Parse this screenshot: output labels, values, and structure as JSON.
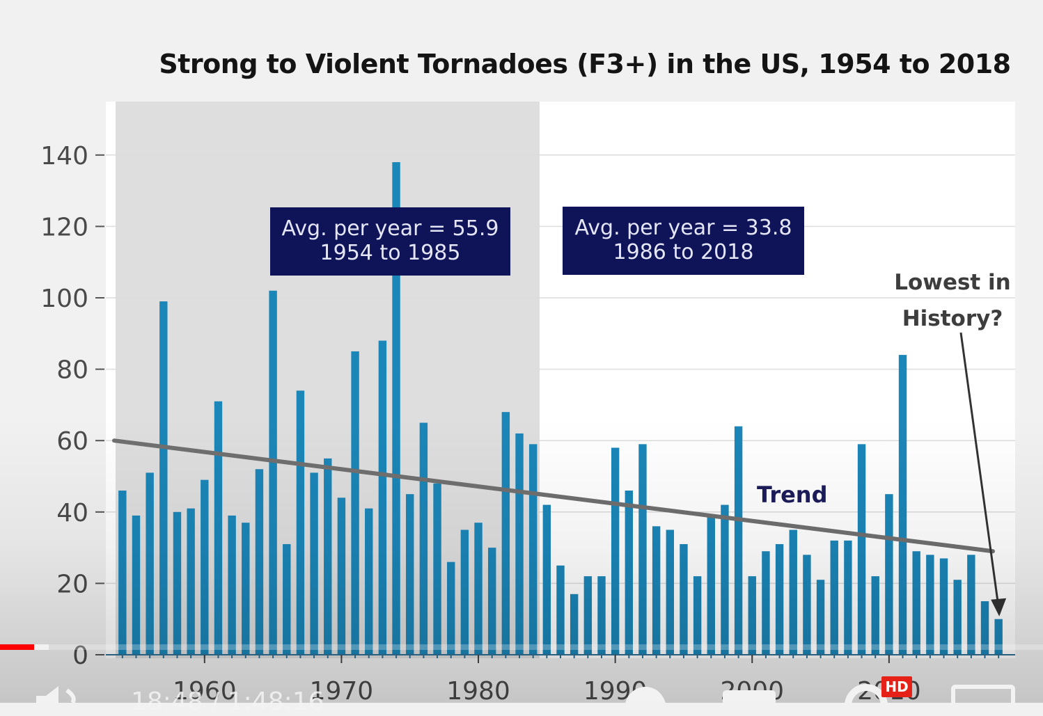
{
  "chart_data": {
    "type": "bar",
    "title": "Strong to Violent Tornadoes (F3+) in the US, 1954 to 2018",
    "xlabel": "",
    "ylabel": "",
    "x": [
      1954,
      1955,
      1956,
      1957,
      1958,
      1959,
      1960,
      1961,
      1962,
      1963,
      1964,
      1965,
      1966,
      1967,
      1968,
      1969,
      1970,
      1971,
      1972,
      1973,
      1974,
      1975,
      1976,
      1977,
      1978,
      1979,
      1980,
      1981,
      1982,
      1983,
      1984,
      1985,
      1986,
      1987,
      1988,
      1989,
      1990,
      1991,
      1992,
      1993,
      1994,
      1995,
      1996,
      1997,
      1998,
      1999,
      2000,
      2001,
      2002,
      2003,
      2004,
      2005,
      2006,
      2007,
      2008,
      2009,
      2010,
      2011,
      2012,
      2013,
      2014,
      2015,
      2016,
      2017,
      2018
    ],
    "values": [
      46,
      39,
      51,
      99,
      40,
      41,
      49,
      71,
      39,
      37,
      52,
      102,
      31,
      74,
      51,
      55,
      44,
      85,
      41,
      88,
      138,
      45,
      65,
      48,
      26,
      35,
      37,
      30,
      68,
      62,
      59,
      42,
      25,
      17,
      22,
      22,
      58,
      46,
      59,
      36,
      35,
      31,
      22,
      39,
      42,
      64,
      22,
      29,
      31,
      35,
      28,
      21,
      32,
      32,
      59,
      22,
      45,
      84,
      29,
      28,
      27,
      21,
      28,
      15,
      10
    ],
    "ylim": [
      0,
      150
    ],
    "xlim": [
      1953.5,
      2019
    ],
    "yticks": [
      0,
      20,
      40,
      60,
      80,
      100,
      120,
      140
    ],
    "yticklabels": [
      "0",
      "20",
      "40",
      "60",
      "80",
      "100",
      "120",
      "140"
    ],
    "xticks": [
      1960,
      1970,
      1980,
      1990,
      2000,
      2010
    ],
    "xticklabels": [
      "1960",
      "1970",
      "1980",
      "1990",
      "2000",
      "2010"
    ],
    "grid": "horizontal",
    "shaded_period": [
      1954,
      1985
    ],
    "trend_line": {
      "x": [
        1954,
        2018
      ],
      "y": [
        60,
        29
      ]
    },
    "bar_color": "#1b86b8",
    "trend_color": "#707070",
    "shade_color": "#dedede",
    "annotations": [
      {
        "lines": [
          "Avg. per year = 55.9",
          "1954 to 1985"
        ],
        "box_color": "#0f1459"
      },
      {
        "lines": [
          "Avg. per year = 33.8",
          "1986 to 2018"
        ],
        "box_color": "#0f1459"
      },
      {
        "text": "Trend"
      },
      {
        "lines": [
          "Lowest in",
          "History?"
        ],
        "points_to": 2018
      }
    ]
  },
  "player": {
    "time_text": "18:48 / 1:48:16",
    "progress_played": 0.033,
    "progress_buffered": 0.047,
    "hd_badge": "HD",
    "icons": [
      "volume-icon",
      "play-icon",
      "subtitles-icon",
      "settings-icon",
      "theater-icon"
    ]
  }
}
